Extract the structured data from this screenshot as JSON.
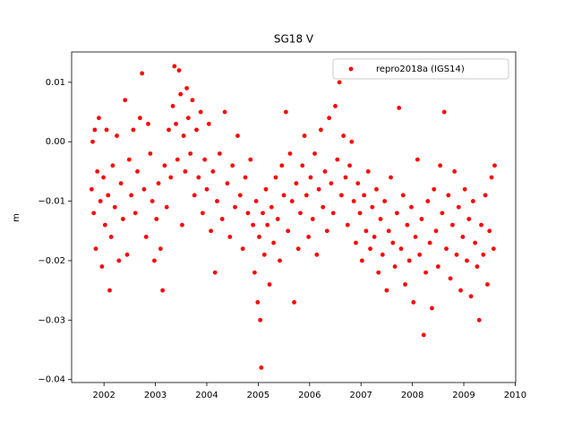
{
  "chart_data": {
    "type": "scatter",
    "title": "SG18 V",
    "ylabel": "m",
    "xlim": [
      2001.37,
      2010.01
    ],
    "ylim": [
      -0.0405,
      0.0151
    ],
    "xticks": [
      2002,
      2003,
      2004,
      2005,
      2006,
      2007,
      2008,
      2009,
      2010
    ],
    "yticks": [
      {
        "value": -0.04,
        "label": "−0.04"
      },
      {
        "value": -0.03,
        "label": "−0.03"
      },
      {
        "value": -0.02,
        "label": "−0.02"
      },
      {
        "value": -0.01,
        "label": "−0.01"
      },
      {
        "value": 0,
        "label": "0.00"
      },
      0.01
    ],
    "legend": "upper right",
    "x": [
      2001.76,
      2001.78,
      2001.8,
      2001.82,
      2001.84,
      2001.87,
      2001.9,
      2001.93,
      2001.96,
      2001.99,
      2002.02,
      2002.05,
      2002.08,
      2002.11,
      2002.14,
      2002.17,
      2002.21,
      2002.25,
      2002.29,
      2002.33,
      2002.37,
      2002.41,
      2002.45,
      2002.49,
      2002.53,
      2002.57,
      2002.61,
      2002.65,
      2002.7,
      2002.74,
      2002.78,
      2002.82,
      2002.86,
      2002.9,
      2002.94,
      2002.98,
      2003.02,
      2003.06,
      2003.1,
      2003.14,
      2003.18,
      2003.22,
      2003.26,
      2003.3,
      2003.34,
      2003.37,
      2003.4,
      2003.43,
      2003.46,
      2003.49,
      2003.52,
      2003.55,
      2003.58,
      2003.61,
      2003.64,
      2003.68,
      2003.72,
      2003.76,
      2003.8,
      2003.84,
      2003.88,
      2003.92,
      2003.96,
      2004.0,
      2004.04,
      2004.08,
      2004.12,
      2004.16,
      2004.2,
      2004.25,
      2004.3,
      2004.35,
      2004.4,
      2004.45,
      2004.5,
      2004.55,
      2004.6,
      2004.65,
      2004.7,
      2004.75,
      2004.8,
      2004.85,
      2004.9,
      2004.93,
      2004.96,
      2004.99,
      2005.02,
      2005.04,
      2005.06,
      2005.09,
      2005.12,
      2005.15,
      2005.18,
      2005.22,
      2005.26,
      2005.3,
      2005.34,
      2005.38,
      2005.42,
      2005.46,
      2005.5,
      2005.54,
      2005.58,
      2005.62,
      2005.66,
      2005.7,
      2005.74,
      2005.78,
      2005.82,
      2005.86,
      2005.9,
      2005.94,
      2005.98,
      2006.02,
      2006.06,
      2006.1,
      2006.14,
      2006.18,
      2006.22,
      2006.26,
      2006.3,
      2006.34,
      2006.38,
      2006.42,
      2006.46,
      2006.5,
      2006.54,
      2006.58,
      2006.62,
      2006.66,
      2006.7,
      2006.74,
      2006.78,
      2006.82,
      2006.86,
      2006.9,
      2006.94,
      2006.98,
      2007.02,
      2007.06,
      2007.1,
      2007.14,
      2007.18,
      2007.22,
      2007.26,
      2007.3,
      2007.34,
      2007.38,
      2007.42,
      2007.46,
      2007.5,
      2007.54,
      2007.58,
      2007.62,
      2007.66,
      2007.7,
      2007.74,
      2007.78,
      2007.82,
      2007.86,
      2007.9,
      2007.94,
      2007.98,
      2008.02,
      2008.06,
      2008.1,
      2008.14,
      2008.18,
      2008.22,
      2008.26,
      2008.3,
      2008.34,
      2008.38,
      2008.42,
      2008.46,
      2008.5,
      2008.54,
      2008.58,
      2008.62,
      2008.66,
      2008.7,
      2008.74,
      2008.78,
      2008.82,
      2008.86,
      2008.9,
      2008.94,
      2008.98,
      2009.02,
      2009.06,
      2009.1,
      2009.14,
      2009.18,
      2009.22,
      2009.26,
      2009.3,
      2009.34,
      2009.38,
      2009.42,
      2009.46,
      2009.5,
      2009.54,
      2009.58,
      2009.6
    ],
    "series": [
      {
        "name": "repro2018a (IGS14)",
        "color": "#ff0000",
        "values": [
          -0.008,
          0.0,
          -0.012,
          0.002,
          -0.018,
          -0.005,
          0.004,
          -0.01,
          -0.021,
          -0.006,
          -0.014,
          0.002,
          -0.009,
          -0.025,
          -0.016,
          -0.004,
          -0.011,
          0.001,
          -0.02,
          -0.007,
          -0.013,
          0.007,
          -0.019,
          -0.003,
          -0.009,
          0.002,
          -0.012,
          -0.005,
          0.004,
          0.0115,
          -0.008,
          -0.016,
          0.003,
          -0.002,
          -0.01,
          -0.02,
          -0.013,
          -0.007,
          -0.018,
          -0.025,
          -0.004,
          -0.011,
          0.002,
          -0.006,
          0.006,
          0.0127,
          0.003,
          -0.003,
          0.012,
          0.008,
          -0.014,
          0.001,
          -0.005,
          0.009,
          0.004,
          -0.002,
          0.007,
          -0.009,
          0.002,
          -0.006,
          0.005,
          -0.012,
          -0.003,
          -0.008,
          0.003,
          -0.015,
          -0.005,
          -0.022,
          -0.01,
          -0.002,
          -0.013,
          0.005,
          -0.007,
          -0.016,
          -0.004,
          -0.011,
          0.001,
          -0.009,
          -0.018,
          -0.006,
          -0.012,
          -0.003,
          -0.014,
          -0.022,
          -0.01,
          -0.027,
          -0.016,
          -0.03,
          -0.038,
          -0.012,
          -0.019,
          -0.008,
          -0.014,
          -0.024,
          -0.011,
          -0.017,
          -0.006,
          -0.013,
          -0.02,
          -0.004,
          -0.009,
          0.005,
          -0.015,
          -0.002,
          -0.01,
          -0.027,
          -0.007,
          -0.018,
          -0.012,
          -0.004,
          0.001,
          -0.009,
          -0.016,
          -0.006,
          -0.013,
          -0.002,
          -0.019,
          -0.008,
          0.002,
          -0.011,
          -0.005,
          -0.015,
          0.004,
          -0.007,
          -0.012,
          0.006,
          -0.003,
          0.01,
          -0.009,
          0.001,
          -0.006,
          -0.014,
          -0.004,
          0.0,
          -0.01,
          -0.017,
          -0.007,
          -0.012,
          -0.02,
          -0.009,
          -0.015,
          -0.005,
          -0.018,
          -0.011,
          -0.016,
          -0.008,
          -0.022,
          -0.013,
          -0.019,
          -0.01,
          -0.025,
          -0.015,
          -0.006,
          -0.017,
          -0.021,
          -0.012,
          0.0057,
          -0.018,
          -0.009,
          -0.024,
          -0.014,
          -0.02,
          -0.011,
          -0.027,
          -0.016,
          -0.003,
          -0.019,
          -0.013,
          -0.0325,
          -0.022,
          -0.01,
          -0.017,
          -0.028,
          -0.008,
          -0.015,
          -0.021,
          -0.004,
          -0.012,
          0.005,
          -0.018,
          -0.009,
          -0.023,
          -0.014,
          -0.005,
          -0.019,
          -0.011,
          -0.025,
          -0.016,
          -0.008,
          -0.02,
          -0.013,
          -0.026,
          -0.01,
          -0.017,
          -0.021,
          -0.03,
          -0.014,
          -0.019,
          -0.009,
          -0.024,
          -0.015,
          -0.006,
          -0.018,
          -0.004
        ]
      }
    ]
  }
}
